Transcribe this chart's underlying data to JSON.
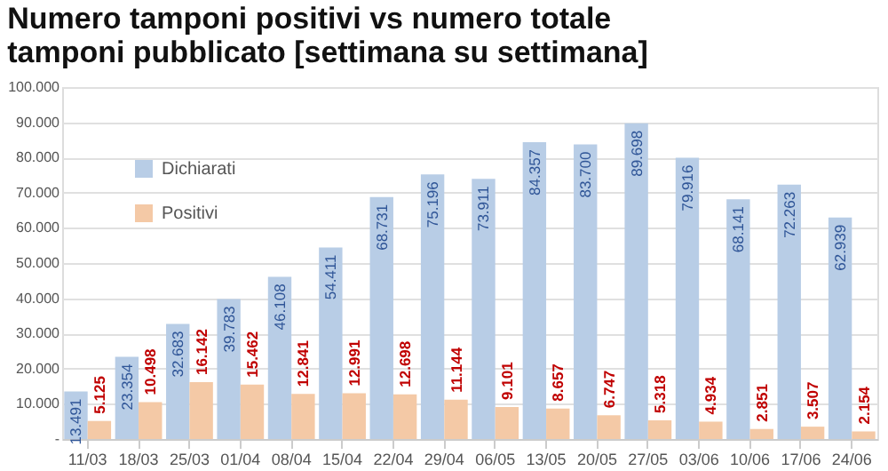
{
  "chart_data": {
    "type": "bar",
    "title": "Numero tamponi positivi vs numero totale\ntamponi pubblicato [settimana su settimana]",
    "categories": [
      "11/03",
      "18/03",
      "25/03",
      "01/04",
      "08/04",
      "15/04",
      "22/04",
      "29/04",
      "06/05",
      "13/05",
      "20/05",
      "27/05",
      "03/06",
      "10/06",
      "17/06",
      "24/06"
    ],
    "series": [
      {
        "name": "Dichiarati",
        "color": "#b8cde6",
        "values": [
          13491,
          23354,
          32683,
          39783,
          46108,
          54411,
          68731,
          75196,
          73911,
          84357,
          83700,
          89698,
          79916,
          68141,
          72263,
          62939
        ],
        "value_labels": [
          "13.491",
          "23.354",
          "32.683",
          "39.783",
          "46.108",
          "54.411",
          "68.731",
          "75.196",
          "73.911",
          "84.357",
          "83.700",
          "89.698",
          "79.916",
          "68.141",
          "72.263",
          "62.939"
        ]
      },
      {
        "name": "Positivi",
        "color": "#f4c9a6",
        "values": [
          5125,
          10498,
          16142,
          15462,
          12841,
          12991,
          12698,
          11144,
          9101,
          8657,
          6747,
          5318,
          4934,
          2851,
          3507,
          2154
        ],
        "value_labels": [
          "5.125",
          "10.498",
          "16.142",
          "15.462",
          "12.841",
          "12.991",
          "12.698",
          "11.144",
          "9.101",
          "8.657",
          "6.747",
          "5.318",
          "4.934",
          "2.851",
          "3.507",
          "2.154"
        ]
      }
    ],
    "ylim": [
      0,
      100000
    ],
    "yticks": [
      {
        "value": 0,
        "label": "-"
      },
      {
        "value": 10000,
        "label": "10.000"
      },
      {
        "value": 20000,
        "label": "20.000"
      },
      {
        "value": 30000,
        "label": "30.000"
      },
      {
        "value": 40000,
        "label": "40.000"
      },
      {
        "value": 50000,
        "label": "50.000"
      },
      {
        "value": 60000,
        "label": "60.000"
      },
      {
        "value": 70000,
        "label": "70.000"
      },
      {
        "value": 80000,
        "label": "80.000"
      },
      {
        "value": 90000,
        "label": "90.000"
      },
      {
        "value": 100000,
        "label": "100.000"
      }
    ],
    "grid": "y",
    "legend": "top left"
  }
}
